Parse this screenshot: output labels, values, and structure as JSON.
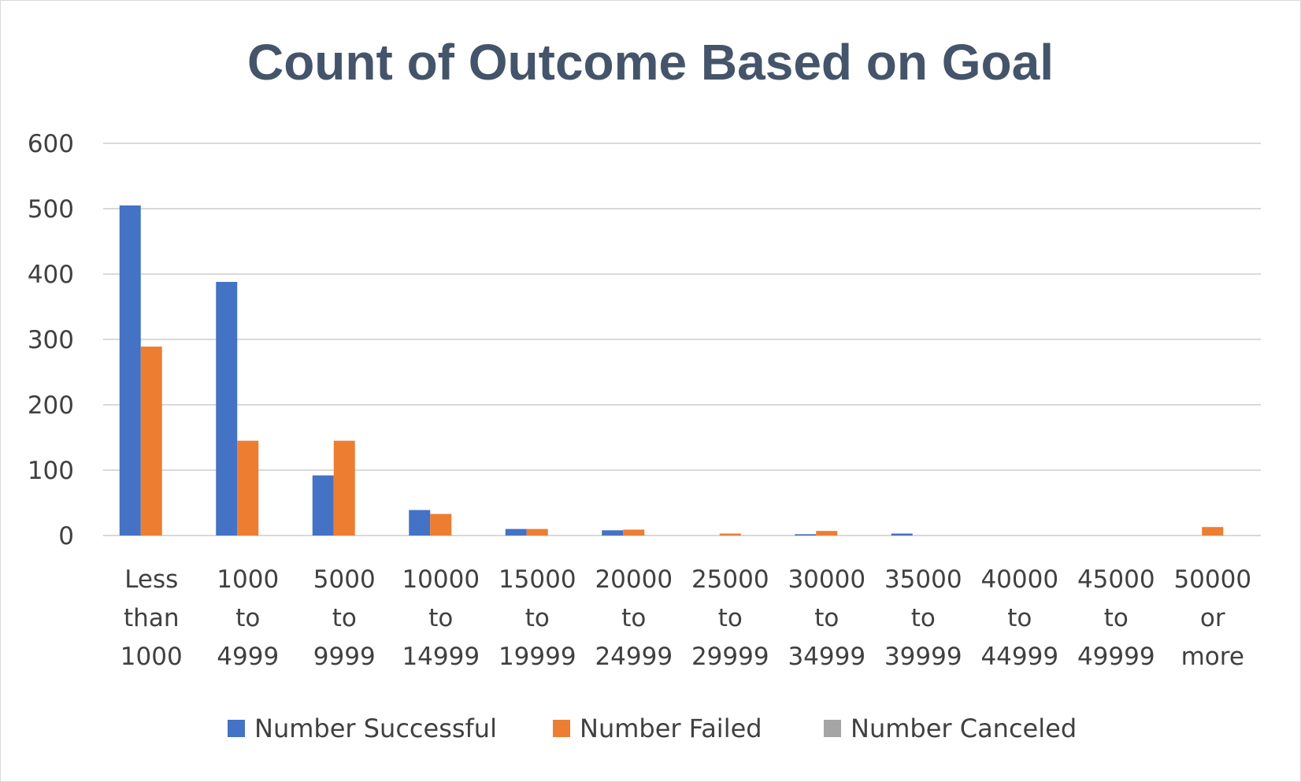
{
  "colors": {
    "successful": "#4472c4",
    "failed": "#ed7d31",
    "canceled": "#a5a5a5",
    "grid": "#d9d9d9",
    "title": "#44546a",
    "text": "#404040"
  },
  "chart_data": {
    "type": "bar",
    "title": "Count of Outcome Based on Goal",
    "xlabel": "",
    "ylabel": "",
    "ylim": [
      0,
      600
    ],
    "yticks": [
      "0",
      "100",
      "200",
      "300",
      "400",
      "500",
      "600"
    ],
    "grid": true,
    "legend_position": "bottom",
    "categories": [
      [
        "Less",
        "than",
        "1000"
      ],
      [
        "1000",
        "to",
        "4999"
      ],
      [
        "5000",
        "to",
        "9999"
      ],
      [
        "10000",
        "to",
        "14999"
      ],
      [
        "15000",
        "to",
        "19999"
      ],
      [
        "20000",
        "to",
        "24999"
      ],
      [
        "25000",
        "to",
        "29999"
      ],
      [
        "30000",
        "to",
        "34999"
      ],
      [
        "35000",
        "to",
        "39999"
      ],
      [
        "40000",
        "to",
        "44999"
      ],
      [
        "45000",
        "to",
        "49999"
      ],
      [
        "50000",
        "or",
        "more"
      ]
    ],
    "series": [
      {
        "name": "Number Successful",
        "color_key": "successful",
        "values": [
          505,
          388,
          92,
          39,
          10,
          8,
          0,
          2,
          3,
          0,
          0,
          0
        ]
      },
      {
        "name": "Number Failed",
        "color_key": "failed",
        "values": [
          289,
          145,
          145,
          33,
          10,
          9,
          3,
          7,
          0,
          0,
          0,
          13
        ]
      },
      {
        "name": "Number Canceled",
        "color_key": "canceled",
        "values": [
          0,
          0,
          0,
          0,
          0,
          0,
          0,
          0,
          0,
          0,
          0,
          0
        ]
      }
    ]
  }
}
